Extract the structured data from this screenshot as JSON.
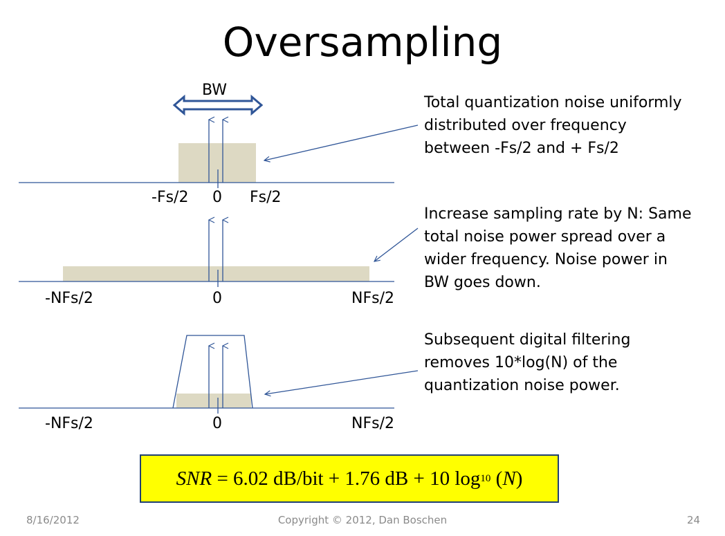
{
  "slide": {
    "title": "Oversampling",
    "bw_label": "BW"
  },
  "panel1": {
    "left_label": "-Fs/2",
    "center_label": "0",
    "right_label": "Fs/2",
    "note_lines": [
      "Total quantization noise uniformly",
      "distributed over frequency",
      "between  -Fs/2 and + Fs/2"
    ]
  },
  "panel2": {
    "left_label": "-NFs/2",
    "center_label": "0",
    "right_label": "NFs/2",
    "note_lines": [
      "Increase sampling rate by N: Same",
      "total noise power spread over a",
      "wider frequency.   Noise power in",
      "BW goes down."
    ]
  },
  "panel3": {
    "left_label": "-NFs/2",
    "center_label": "0",
    "right_label": "NFs/2",
    "note_lines": [
      "Subsequent digital filtering",
      "removes 10*log(N) of the",
      "quantization noise power."
    ]
  },
  "formula": {
    "snr": "SNR",
    "equals": " = 6.02 dB/bit + 1.76 dB + 10 log",
    "subscript": "10",
    "open": " (",
    "n": "N",
    "close": ")"
  },
  "footer": {
    "date": "8/16/2012",
    "copyright": "Copyright © 2012, Dan Boschen",
    "page": "24"
  },
  "colors": {
    "axis": "#2f5597",
    "noise_fill": "#ddd9c3",
    "formula_bg": "#ffff00",
    "footer_text": "#8a8a8a"
  }
}
